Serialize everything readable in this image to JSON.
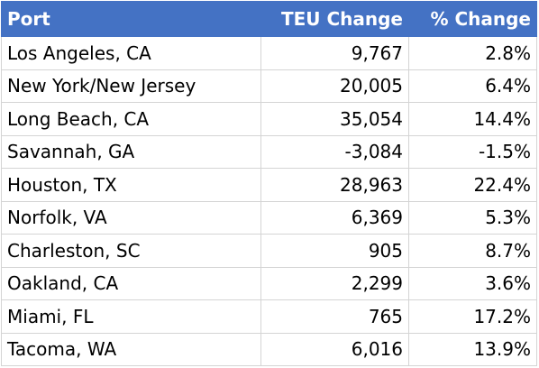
{
  "table": {
    "headers": {
      "port": "Port",
      "teu_change": "TEU Change",
      "pct_change": "% Change"
    },
    "rows": [
      {
        "port": "Los Angeles, CA",
        "teu_change": "9,767",
        "pct_change": "2.8%"
      },
      {
        "port": "New York/New Jersey",
        "teu_change": "20,005",
        "pct_change": "6.4%"
      },
      {
        "port": "Long Beach, CA",
        "teu_change": "35,054",
        "pct_change": "14.4%"
      },
      {
        "port": "Savannah, GA",
        "teu_change": "-3,084",
        "pct_change": "-1.5%"
      },
      {
        "port": "Houston, TX",
        "teu_change": "28,963",
        "pct_change": "22.4%"
      },
      {
        "port": "Norfolk, VA",
        "teu_change": "6,369",
        "pct_change": "5.3%"
      },
      {
        "port": "Charleston, SC",
        "teu_change": "905",
        "pct_change": "8.7%"
      },
      {
        "port": "Oakland, CA",
        "teu_change": "2,299",
        "pct_change": "3.6%"
      },
      {
        "port": "Miami, FL",
        "teu_change": "765",
        "pct_change": "17.2%"
      },
      {
        "port": "Tacoma, WA",
        "teu_change": "6,016",
        "pct_change": "13.9%"
      }
    ]
  },
  "colors": {
    "header_background": "#4472c4",
    "header_text": "#ffffff",
    "grid_line": "#d4d4d4"
  }
}
